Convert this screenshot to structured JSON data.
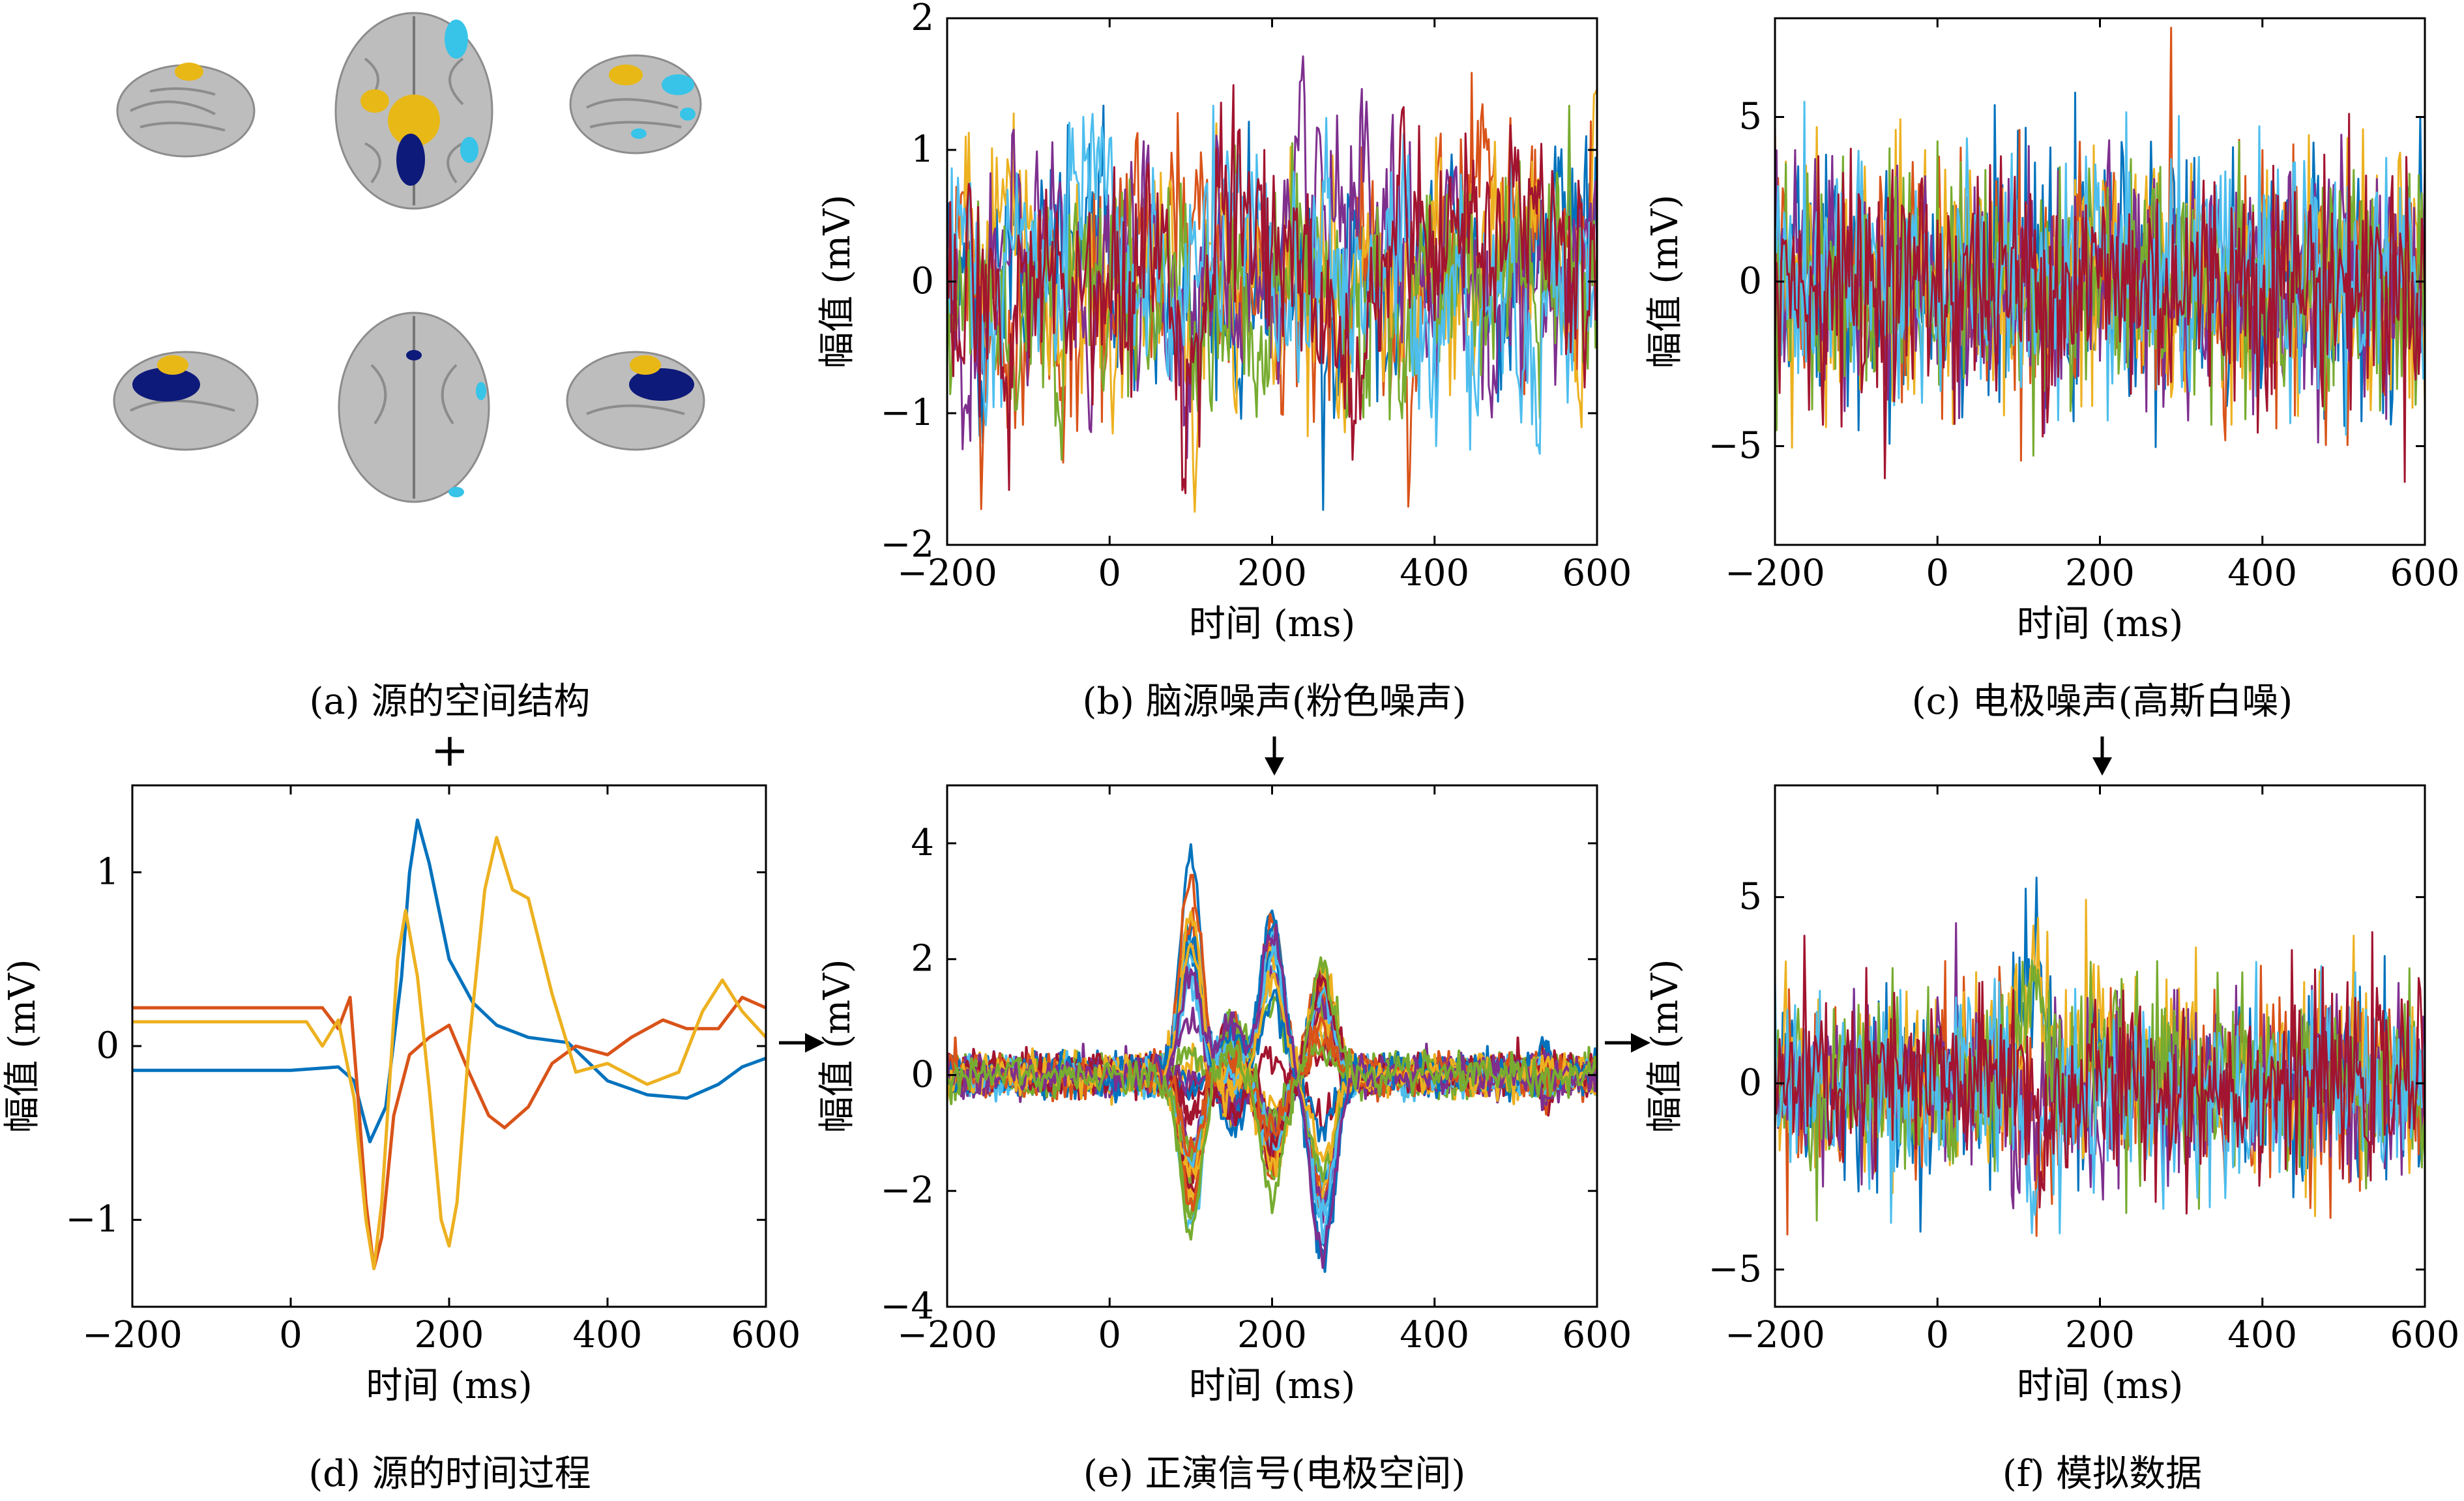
{
  "figure": {
    "connector_plus": "+",
    "captions": {
      "a": "(a) 源的空间结构",
      "b": "(b) 脑源噪声(粉色噪声)",
      "c": "(c) 电极噪声(高斯白噪)",
      "d": "(d) 源的时间过程",
      "e": "(e) 正演信号(电极空间)",
      "f": "(f) 模拟数据"
    },
    "colors": [
      "#0072BD",
      "#D95319",
      "#EDB120",
      "#7E2F8E",
      "#77AC30",
      "#4DBEEE",
      "#A2142F"
    ],
    "brain_colors": {
      "cortex": "#bdbdbd",
      "yellow": "#e8b816",
      "navy": "#0d1a7a",
      "cyan": "#37c4e8"
    }
  },
  "chart_data": [
    {
      "id": "b",
      "type": "line",
      "xlabel": "时间 (ms)",
      "ylabel": "幅值 (mV)",
      "xlim": [
        -200,
        600
      ],
      "ylim": [
        -2,
        2
      ],
      "xticks": [
        -200,
        0,
        200,
        400,
        600
      ],
      "yticks": [
        -2,
        -1,
        0,
        1,
        2
      ],
      "xtick_labels": [
        "−200",
        "0",
        "200",
        "400",
        "600"
      ],
      "ytick_labels": [
        "−2",
        "−1",
        "0",
        "1",
        "2"
      ],
      "series_count": 7,
      "noise_kind": "pink",
      "amplitude": 0.5,
      "x_range": [
        -200,
        600
      ]
    },
    {
      "id": "c",
      "type": "line",
      "xlabel": "时间 (ms)",
      "ylabel": "幅值 (mV)",
      "xlim": [
        -200,
        600
      ],
      "ylim": [
        -8,
        8
      ],
      "xticks": [
        -200,
        0,
        200,
        400,
        600
      ],
      "yticks": [
        -5,
        0,
        5
      ],
      "xtick_labels": [
        "−200",
        "0",
        "200",
        "400",
        "600"
      ],
      "ytick_labels": [
        "−5",
        "0",
        "5"
      ],
      "series_count": 7,
      "noise_kind": "white",
      "amplitude": 1.8,
      "x_range": [
        -200,
        600
      ]
    },
    {
      "id": "d",
      "type": "line",
      "xlabel": "时间 (ms)",
      "ylabel": "幅值 (mV)",
      "xlim": [
        -200,
        600
      ],
      "ylim": [
        -1.5,
        1.5
      ],
      "xticks": [
        -200,
        0,
        200,
        400,
        600
      ],
      "yticks": [
        -1,
        0,
        1
      ],
      "xtick_labels": [
        "−200",
        "0",
        "200",
        "400",
        "600"
      ],
      "ytick_labels": [
        "−1",
        "0",
        "1"
      ],
      "series": [
        {
          "color": "#0072BD",
          "points": [
            [
              -200,
              -0.14
            ],
            [
              0,
              -0.14
            ],
            [
              60,
              -0.12
            ],
            [
              80,
              -0.2
            ],
            [
              100,
              -0.55
            ],
            [
              120,
              -0.35
            ],
            [
              140,
              0.4
            ],
            [
              150,
              1.0
            ],
            [
              160,
              1.3
            ],
            [
              175,
              1.05
            ],
            [
              200,
              0.5
            ],
            [
              230,
              0.25
            ],
            [
              260,
              0.12
            ],
            [
              300,
              0.05
            ],
            [
              350,
              0.02
            ],
            [
              400,
              -0.2
            ],
            [
              450,
              -0.28
            ],
            [
              500,
              -0.3
            ],
            [
              540,
              -0.22
            ],
            [
              570,
              -0.12
            ],
            [
              600,
              -0.07
            ]
          ]
        },
        {
          "color": "#D95319",
          "points": [
            [
              -200,
              0.22
            ],
            [
              0,
              0.22
            ],
            [
              40,
              0.22
            ],
            [
              60,
              0.1
            ],
            [
              75,
              0.28
            ],
            [
              85,
              -0.3
            ],
            [
              95,
              -0.9
            ],
            [
              105,
              -1.28
            ],
            [
              115,
              -1.1
            ],
            [
              130,
              -0.4
            ],
            [
              150,
              -0.05
            ],
            [
              175,
              0.05
            ],
            [
              200,
              0.12
            ],
            [
              225,
              -0.15
            ],
            [
              250,
              -0.4
            ],
            [
              270,
              -0.47
            ],
            [
              300,
              -0.35
            ],
            [
              330,
              -0.1
            ],
            [
              360,
              0.0
            ],
            [
              400,
              -0.05
            ],
            [
              430,
              0.05
            ],
            [
              470,
              0.15
            ],
            [
              500,
              0.1
            ],
            [
              540,
              0.1
            ],
            [
              570,
              0.28
            ],
            [
              600,
              0.22
            ]
          ]
        },
        {
          "color": "#EDB120",
          "points": [
            [
              -200,
              0.14
            ],
            [
              0,
              0.14
            ],
            [
              20,
              0.14
            ],
            [
              40,
              0.0
            ],
            [
              60,
              0.15
            ],
            [
              80,
              -0.3
            ],
            [
              95,
              -1.0
            ],
            [
              105,
              -1.28
            ],
            [
              115,
              -0.9
            ],
            [
              125,
              -0.2
            ],
            [
              135,
              0.5
            ],
            [
              145,
              0.78
            ],
            [
              160,
              0.4
            ],
            [
              175,
              -0.25
            ],
            [
              190,
              -1.0
            ],
            [
              200,
              -1.15
            ],
            [
              210,
              -0.9
            ],
            [
              225,
              0.0
            ],
            [
              245,
              0.9
            ],
            [
              260,
              1.2
            ],
            [
              280,
              0.9
            ],
            [
              300,
              0.85
            ],
            [
              330,
              0.3
            ],
            [
              360,
              -0.15
            ],
            [
              400,
              -0.1
            ],
            [
              450,
              -0.22
            ],
            [
              490,
              -0.15
            ],
            [
              520,
              0.2
            ],
            [
              545,
              0.38
            ],
            [
              570,
              0.2
            ],
            [
              600,
              0.05
            ]
          ]
        }
      ]
    },
    {
      "id": "e",
      "type": "line",
      "xlabel": "时间 (ms)",
      "ylabel": "幅值 (mV)",
      "xlim": [
        -200,
        600
      ],
      "ylim": [
        -4,
        5
      ],
      "xticks": [
        -200,
        0,
        200,
        400,
        600
      ],
      "yticks": [
        -4,
        -2,
        0,
        2,
        4
      ],
      "xtick_labels": [
        "−200",
        "0",
        "200",
        "400",
        "600"
      ],
      "ytick_labels": [
        "−4",
        "−2",
        "0",
        "2",
        "4"
      ],
      "series_count": 40,
      "noise_kind": "forward",
      "amplitude": 0.15,
      "x_range": [
        -200,
        600
      ]
    },
    {
      "id": "f",
      "type": "line",
      "xlabel": "时间 (ms)",
      "ylabel": "幅值 (mV)",
      "xlim": [
        -200,
        600
      ],
      "ylim": [
        -6,
        8
      ],
      "xticks": [
        -200,
        0,
        200,
        400,
        600
      ],
      "yticks": [
        -5,
        0,
        5
      ],
      "xtick_labels": [
        "−200",
        "0",
        "200",
        "400",
        "600"
      ],
      "ytick_labels": [
        "−5",
        "0",
        "5"
      ],
      "series_count": 7,
      "noise_kind": "simulated",
      "amplitude": 1.2,
      "x_range": [
        -200,
        600
      ]
    }
  ]
}
